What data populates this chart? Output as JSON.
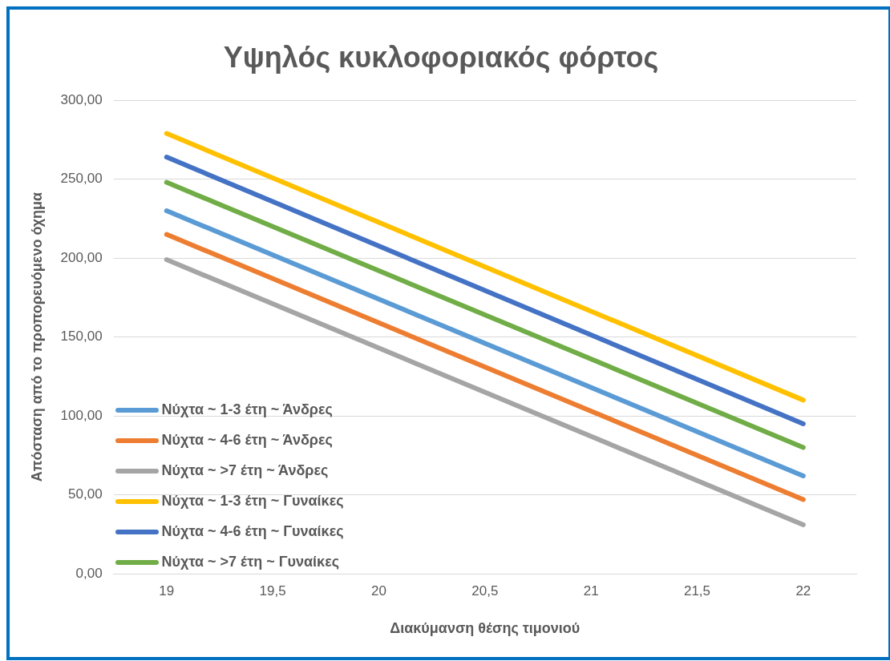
{
  "chart_data": {
    "type": "line",
    "title": "Υψηλός κυκλοφοριακός φόρτος",
    "xlabel": "Διακύμανση θέσης τιμονιού",
    "ylabel": "Απόσταση από το προπορευόμενο όχημα",
    "x": [
      19,
      22
    ],
    "series": [
      {
        "name": "Νύχτα ~ 1-3 έτη ~ Άνδρες",
        "color": "#5b9bd5",
        "values": [
          230,
          62
        ]
      },
      {
        "name": "Νύχτα ~ 4-6 έτη ~ Άνδρες",
        "color": "#ed7d31",
        "values": [
          215,
          47
        ]
      },
      {
        "name": "Νύχτα ~ >7 έτη ~ Άνδρες",
        "color": "#a5a5a5",
        "values": [
          199,
          31
        ]
      },
      {
        "name": "Νύχτα ~ 1-3 έτη ~ Γυναίκες",
        "color": "#ffc000",
        "values": [
          279,
          110
        ]
      },
      {
        "name": "Νύχτα ~ 4-6 έτη ~ Γυναίκες",
        "color": "#4472c4",
        "values": [
          264,
          95
        ]
      },
      {
        "name": "Νύχτα ~ >7 έτη ~ Γυναίκες",
        "color": "#70ad47",
        "values": [
          248,
          80
        ]
      }
    ],
    "xlim": [
      18.75,
      22.25
    ],
    "xticks": [
      19,
      {
        "value": 19.5,
        "label": "19,5"
      },
      20,
      {
        "value": 20.5,
        "label": "20,5"
      },
      21,
      {
        "value": 21.5,
        "label": "21,5"
      },
      22
    ],
    "ylim": [
      0,
      300
    ],
    "yticks": [
      {
        "value": 0,
        "label": "0,00"
      },
      {
        "value": 50,
        "label": "50,00"
      },
      {
        "value": 100,
        "label": "100,00"
      },
      {
        "value": 150,
        "label": "150,00"
      },
      {
        "value": 200,
        "label": "200,00"
      },
      {
        "value": 250,
        "label": "250,00"
      },
      {
        "value": 300,
        "label": "300,00"
      }
    ],
    "grid": "y",
    "legend": "bottom left",
    "marker": "none",
    "line_style": "solid"
  }
}
